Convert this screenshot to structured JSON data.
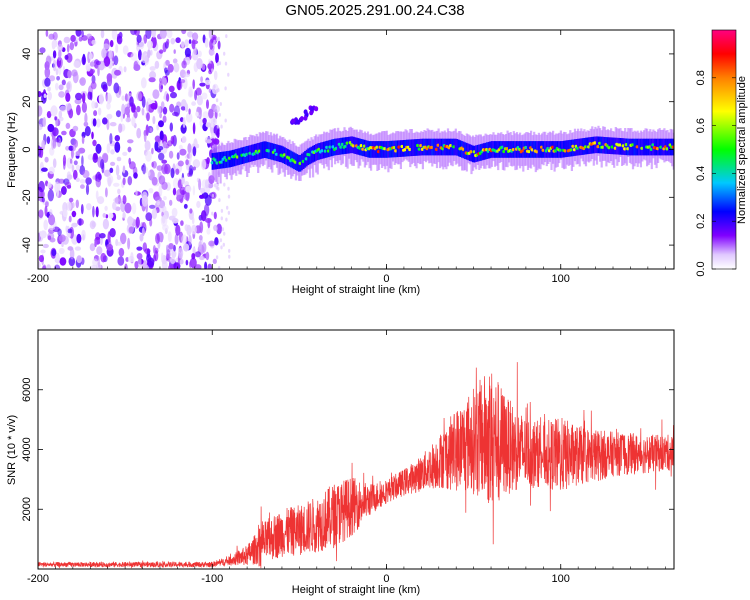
{
  "title": "GN05.2025.291.00.24.C38",
  "chart_data": [
    {
      "type": "heatmap",
      "xlabel": "Height of straight line (km)",
      "ylabel": "Frequency (Hz)",
      "xlim": [
        -200,
        165
      ],
      "ylim": [
        -50,
        50
      ],
      "xticks": [
        -200,
        -100,
        0,
        100
      ],
      "xtick_labels": [
        "-200",
        "-100",
        "0",
        "100"
      ],
      "yticks": [
        -40,
        -20,
        0,
        20,
        40
      ],
      "ytick_labels": [
        "-40",
        "-20",
        "0",
        "20",
        "40"
      ],
      "colorbar": {
        "label": "Normalized spectral amplitude",
        "range": [
          0,
          1
        ],
        "ticks": [
          0.0,
          0.2,
          0.4,
          0.6,
          0.8
        ],
        "tick_labels": [
          "0.0",
          "0.2",
          "0.4",
          "0.6",
          "0.8"
        ],
        "colors": [
          "#ffffff",
          "#7f00ff",
          "#0000ff",
          "#00c8ff",
          "#00ff00",
          "#ffff00",
          "#ff8000",
          "#ff0000",
          "#ff0080"
        ]
      },
      "noise_region_x": [
        -200,
        -100
      ],
      "signal_start_x": -100,
      "signal_trace": {
        "x": [
          -100,
          -90,
          -80,
          -70,
          -60,
          -50,
          -45,
          -40,
          -30,
          -20,
          -10,
          0,
          20,
          40,
          50,
          60,
          80,
          100,
          120,
          140,
          165
        ],
        "y": [
          -5,
          -4,
          -2,
          0,
          -2,
          -6,
          -3,
          -1,
          1,
          2,
          0,
          0,
          1,
          1,
          -2,
          0,
          0,
          0,
          2,
          1,
          1
        ]
      },
      "spur": {
        "x": [
          -55,
          -40
        ],
        "y": [
          10,
          18
        ]
      }
    },
    {
      "type": "line",
      "xlabel": "Height of straight line (km)",
      "ylabel": "SNR (10 * v/v)",
      "xlim": [
        -200,
        165
      ],
      "ylim": [
        0,
        8000
      ],
      "xticks": [
        -200,
        -100,
        0,
        100
      ],
      "xtick_labels": [
        "-200",
        "-100",
        "0",
        "100"
      ],
      "yticks": [
        2000,
        4000,
        6000
      ],
      "ytick_labels": [
        "2000",
        "4000",
        "6000"
      ],
      "color": "#ee3333",
      "envelope": {
        "x": [
          -200,
          -100,
          -90,
          -80,
          -70,
          -60,
          -50,
          -40,
          -30,
          -20,
          -10,
          0,
          10,
          20,
          30,
          40,
          50,
          60,
          70,
          80,
          90,
          100,
          110,
          120,
          130,
          140,
          150,
          165
        ],
        "y": [
          150,
          150,
          280,
          450,
          900,
          1200,
          1300,
          1500,
          1800,
          2100,
          2300,
          2600,
          2900,
          3200,
          3600,
          4000,
          4300,
          4400,
          4100,
          3900,
          3850,
          3800,
          3800,
          3800,
          3850,
          3850,
          3850,
          3900
        ],
        "amp": [
          80,
          90,
          150,
          350,
          700,
          800,
          850,
          950,
          1100,
          1000,
          550,
          400,
          450,
          600,
          900,
          1400,
          1800,
          2400,
          1600,
          1200,
          1100,
          1300,
          1000,
          900,
          750,
          700,
          650,
          600
        ]
      }
    }
  ]
}
